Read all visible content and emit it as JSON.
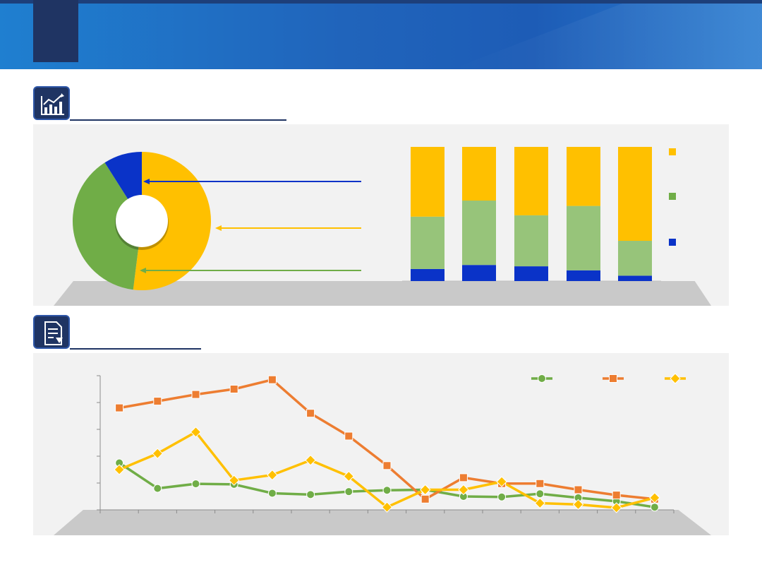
{
  "header": {
    "title": ""
  },
  "section1": {
    "icon": "bar-chart-trend-icon"
  },
  "section2": {
    "icon": "document-download-icon"
  },
  "colors": {
    "yellow": "#FFC000",
    "green": "#70AD47",
    "light_green": "#97C47A",
    "blue": "#0A33C8",
    "orange": "#ED7D31",
    "navy": "#1F3463"
  },
  "chart_data": [
    {
      "type": "pie",
      "donut": true,
      "title": "",
      "labels": [
        "",
        "",
        ""
      ],
      "values": [
        52,
        39,
        9
      ],
      "slice_colors": [
        "#FFC000",
        "#70AD47",
        "#0A33C8"
      ]
    },
    {
      "type": "bar",
      "stacked": true,
      "normalized": true,
      "title": "",
      "categories": [
        "",
        "",
        "",
        "",
        ""
      ],
      "series": [
        {
          "values": [
            9,
            12,
            11,
            8,
            4
          ],
          "color": "#0A33C8"
        },
        {
          "values": [
            39,
            48,
            38,
            48,
            26
          ],
          "color": "#97C47A"
        },
        {
          "values": [
            52,
            40,
            51,
            44,
            70
          ],
          "color": "#FFC000"
        }
      ],
      "legend_position": "right",
      "ylim": [
        0,
        100
      ]
    },
    {
      "type": "line",
      "title": "",
      "x": [
        1,
        2,
        3,
        4,
        5,
        6,
        7,
        8,
        9,
        10,
        11,
        12,
        13,
        14,
        15
      ],
      "ylim": [
        0,
        5
      ],
      "series": [
        {
          "marker": "circle",
          "color": "#70AD47",
          "values": [
            1.75,
            0.8,
            0.97,
            0.95,
            0.62,
            0.57,
            0.68,
            0.73,
            0.75,
            0.5,
            0.48,
            0.6,
            0.45,
            0.32,
            0.1
          ]
        },
        {
          "marker": "square",
          "color": "#ED7D31",
          "values": [
            3.8,
            4.05,
            4.3,
            4.5,
            4.85,
            3.6,
            2.75,
            1.65,
            0.4,
            1.2,
            0.98,
            0.98,
            0.75,
            0.55,
            0.4
          ]
        },
        {
          "marker": "diamond",
          "color": "#FFC000",
          "values": [
            1.5,
            2.1,
            2.9,
            1.1,
            1.3,
            1.85,
            1.25,
            0.1,
            0.75,
            0.75,
            1.05,
            0.25,
            0.2,
            0.08,
            0.45
          ]
        }
      ],
      "legend_position": "top-right"
    }
  ]
}
